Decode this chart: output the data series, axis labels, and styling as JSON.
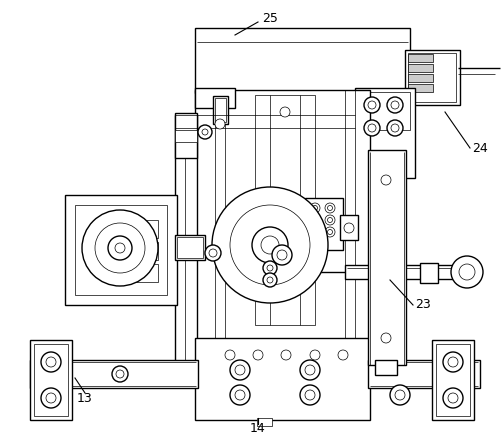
{
  "bg_color": "#ffffff",
  "lc": "#000000",
  "lw": 1.0,
  "tlw": 0.5,
  "fs": 9,
  "fig_w": 5.01,
  "fig_h": 4.42,
  "dpi": 100
}
